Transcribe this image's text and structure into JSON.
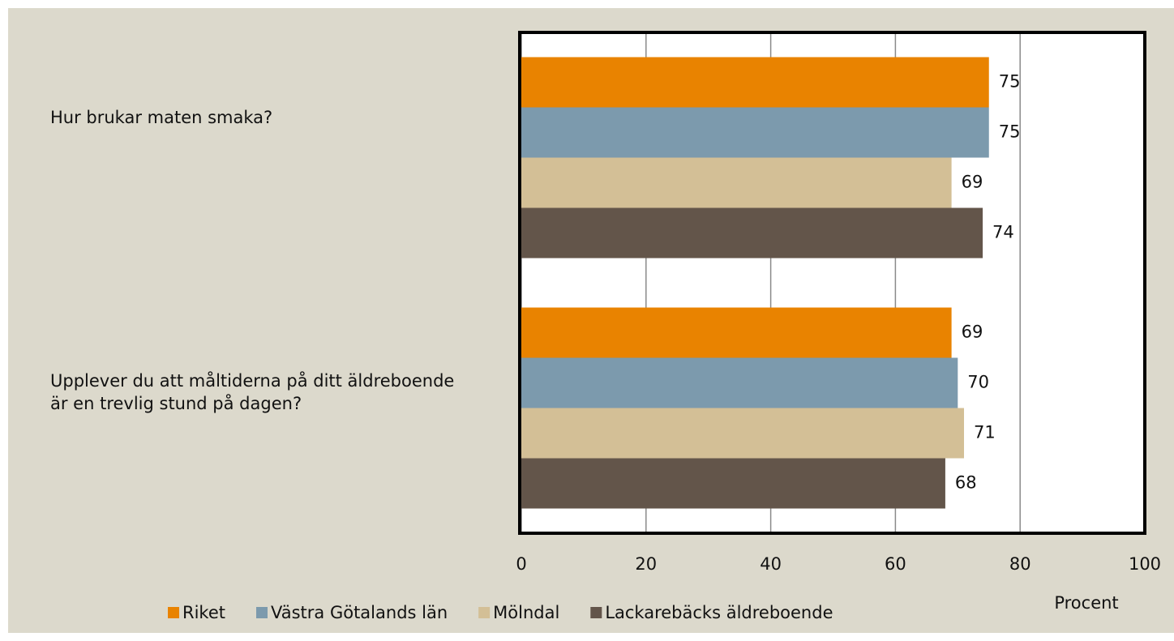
{
  "chart_data": {
    "type": "bar",
    "orientation": "horizontal",
    "categories": [
      "Hur brukar maten smaka?",
      "Upplever du att måltiderna på ditt äldreboende är en trevlig stund på dagen?"
    ],
    "series": [
      {
        "name": "Riket",
        "color": "#e98300",
        "values": [
          75,
          69
        ]
      },
      {
        "name": "Västra Götalands län",
        "color": "#7c9aad",
        "values": [
          75,
          70
        ]
      },
      {
        "name": "Mölndal",
        "color": "#d3bf96",
        "values": [
          69,
          71
        ]
      },
      {
        "name": "Lackarebäcks äldreboende",
        "color": "#63554a",
        "values": [
          74,
          68
        ]
      }
    ],
    "xlim": [
      0,
      100
    ],
    "xticks": [
      0,
      20,
      40,
      60,
      80,
      100
    ],
    "xlabel": "Procent",
    "grid": true,
    "legend": "bottom"
  }
}
